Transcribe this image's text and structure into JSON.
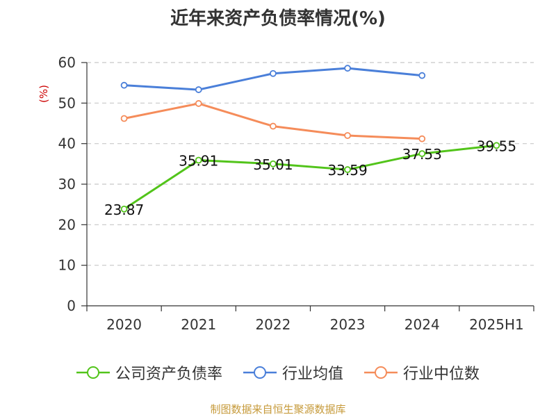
{
  "chart_data": {
    "type": "line",
    "title": "近年来资产负债率情况(%)",
    "ylabel": "(%)",
    "xlabel": "",
    "categories": [
      "2020",
      "2021",
      "2022",
      "2023",
      "2024",
      "2025H1"
    ],
    "ylim": [
      0,
      60
    ],
    "yticks": [
      0,
      10,
      20,
      30,
      40,
      50,
      60
    ],
    "grid": true,
    "legend_position": "bottom",
    "series": [
      {
        "name": "公司资产负债率",
        "color": "#52c41a",
        "show_labels": true,
        "values": [
          23.87,
          35.91,
          35.01,
          33.59,
          37.53,
          39.55
        ],
        "labels": [
          "23.87",
          "35.91",
          "35.01",
          "33.59",
          "37.53",
          "39.55"
        ]
      },
      {
        "name": "行业均值",
        "color": "#4a7fd9",
        "show_labels": false,
        "values": [
          54.4,
          53.3,
          57.3,
          58.6,
          56.8,
          null
        ]
      },
      {
        "name": "行业中位数",
        "color": "#f58c5a",
        "show_labels": false,
        "values": [
          46.2,
          49.9,
          44.3,
          42.0,
          41.2,
          null
        ]
      }
    ]
  },
  "source": "制图数据来自恒生聚源数据库"
}
